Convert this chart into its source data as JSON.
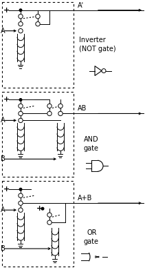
{
  "bg_color": "#ffffff",
  "line_color": "#000000",
  "lw": 0.7,
  "sections": [
    {
      "type": "NOT",
      "label_out": "A'",
      "gate_label": [
        "Inverter",
        "(NOT gate)"
      ]
    },
    {
      "type": "AND",
      "label_out": "AB",
      "gate_label": [
        "AND",
        "gate"
      ]
    },
    {
      "type": "OR",
      "label_out": "A+B",
      "gate_label": [
        "OR",
        "gate"
      ]
    }
  ]
}
